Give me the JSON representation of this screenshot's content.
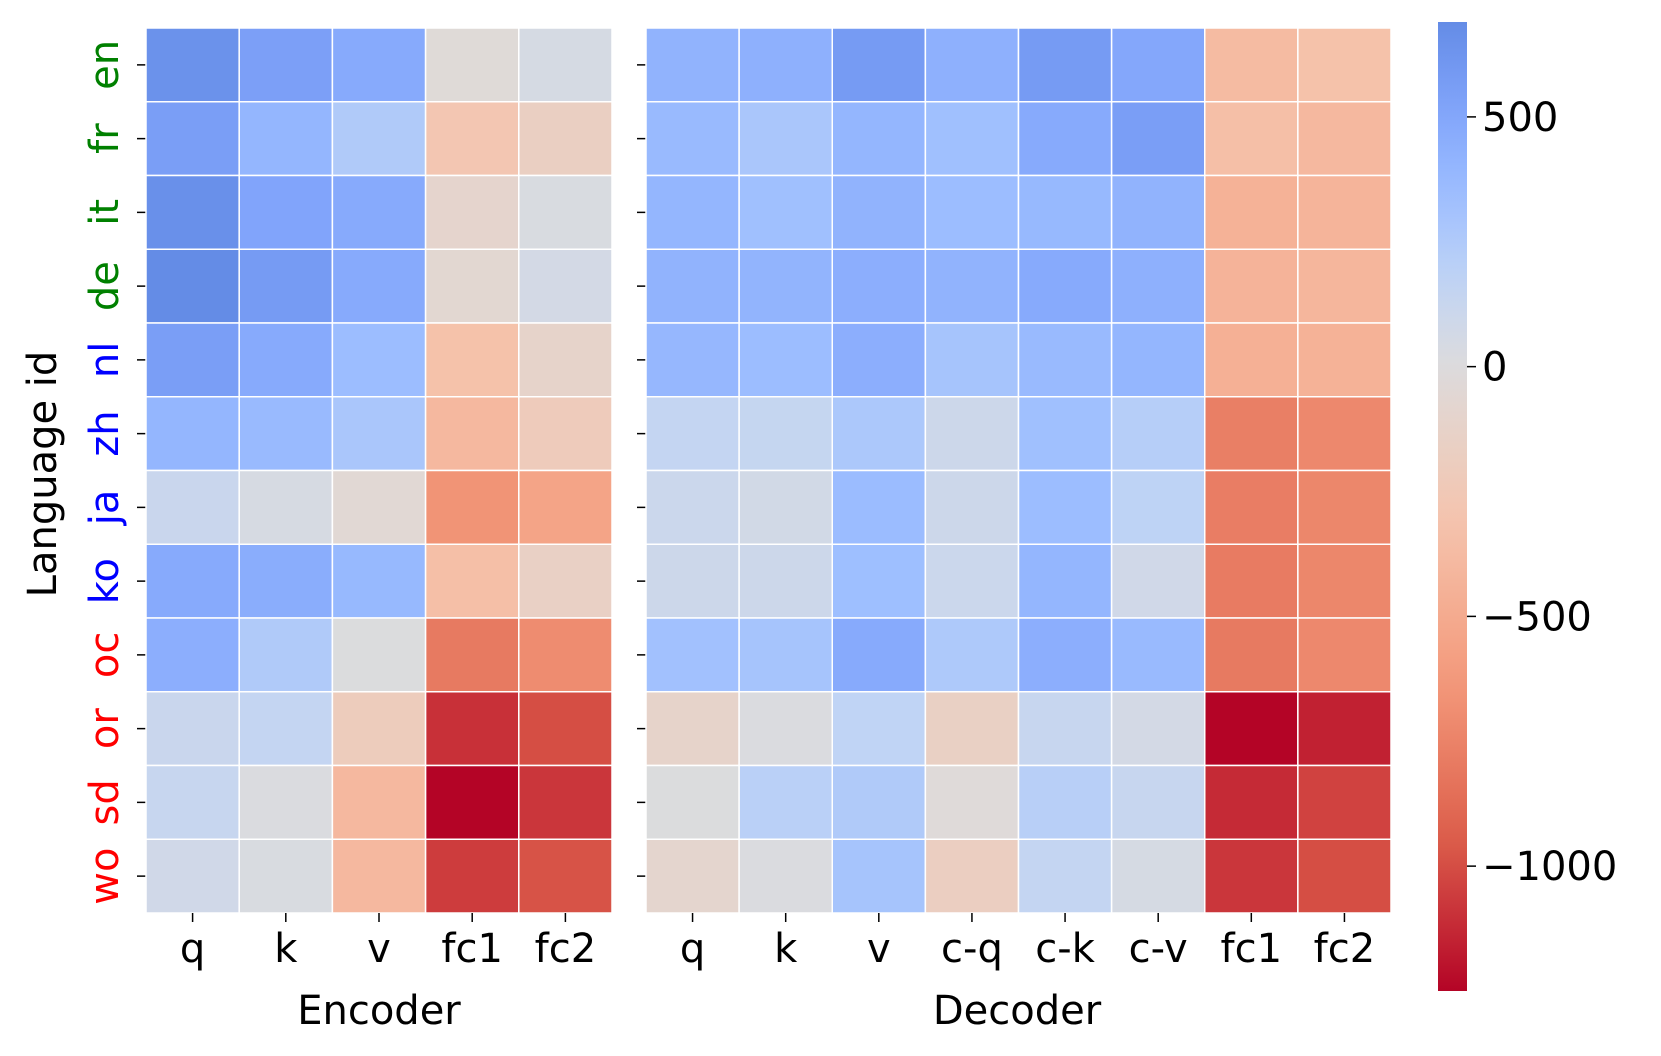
{
  "chart_data": {
    "type": "heatmap",
    "ylabel": "Language id",
    "languages": [
      {
        "id": "en",
        "color": "#008000"
      },
      {
        "id": "fr",
        "color": "#008000"
      },
      {
        "id": "it",
        "color": "#008000"
      },
      {
        "id": "de",
        "color": "#008000"
      },
      {
        "id": "nl",
        "color": "#0000ff"
      },
      {
        "id": "zh",
        "color": "#0000ff"
      },
      {
        "id": "ja",
        "color": "#0000ff"
      },
      {
        "id": "ko",
        "color": "#0000ff"
      },
      {
        "id": "oc",
        "color": "#ff0000"
      },
      {
        "id": "or",
        "color": "#ff0000"
      },
      {
        "id": "sd",
        "color": "#ff0000"
      },
      {
        "id": "wo",
        "color": "#ff0000"
      }
    ],
    "panels": [
      {
        "name": "encoder",
        "xlabel": "Encoder",
        "columns": [
          "q",
          "k",
          "v",
          "fc1",
          "fc2"
        ],
        "values": [
          [
            650,
            550,
            480,
            -30,
            50
          ],
          [
            560,
            400,
            250,
            -280,
            -170
          ],
          [
            660,
            520,
            480,
            -100,
            30
          ],
          [
            690,
            580,
            480,
            -70,
            60
          ],
          [
            560,
            480,
            350,
            -330,
            -120
          ],
          [
            400,
            370,
            280,
            -400,
            -220
          ],
          [
            120,
            40,
            -50,
            -660,
            -550
          ],
          [
            480,
            460,
            380,
            -350,
            -150
          ],
          [
            450,
            250,
            10,
            -800,
            -700
          ],
          [
            120,
            150,
            -210,
            -1100,
            -1000
          ],
          [
            130,
            20,
            -400,
            -1250,
            -1080
          ],
          [
            80,
            30,
            -400,
            -1060,
            -980
          ]
        ]
      },
      {
        "name": "decoder",
        "xlabel": "Decoder",
        "columns": [
          "q",
          "k",
          "v",
          "c-q",
          "c-k",
          "c-v",
          "fc1",
          "fc2"
        ],
        "values": [
          [
            420,
            440,
            580,
            440,
            580,
            500,
            -380,
            -330
          ],
          [
            370,
            280,
            400,
            330,
            480,
            560,
            -350,
            -400
          ],
          [
            400,
            330,
            420,
            350,
            380,
            420,
            -450,
            -430
          ],
          [
            420,
            410,
            450,
            420,
            480,
            440,
            -440,
            -420
          ],
          [
            390,
            350,
            450,
            300,
            370,
            400,
            -460,
            -450
          ],
          [
            150,
            140,
            270,
            100,
            330,
            220,
            -770,
            -720
          ],
          [
            110,
            70,
            360,
            100,
            350,
            180,
            -780,
            -730
          ],
          [
            100,
            100,
            340,
            110,
            400,
            80,
            -790,
            -730
          ],
          [
            320,
            300,
            480,
            260,
            450,
            370,
            -800,
            -720
          ],
          [
            -120,
            20,
            170,
            -160,
            130,
            60,
            -1250,
            -1150
          ],
          [
            10,
            200,
            250,
            -20,
            210,
            130,
            -1120,
            -1040
          ],
          [
            -90,
            20,
            300,
            -180,
            150,
            50,
            -1080,
            -1000
          ]
        ]
      }
    ],
    "colorbar": {
      "vmin": -1250,
      "vmax": 690,
      "ticks": [
        500,
        0,
        -500,
        -1000
      ],
      "tick_labels": [
        "500",
        "0",
        "−500",
        "−1000"
      ],
      "colormap": "coolwarm_r"
    }
  }
}
